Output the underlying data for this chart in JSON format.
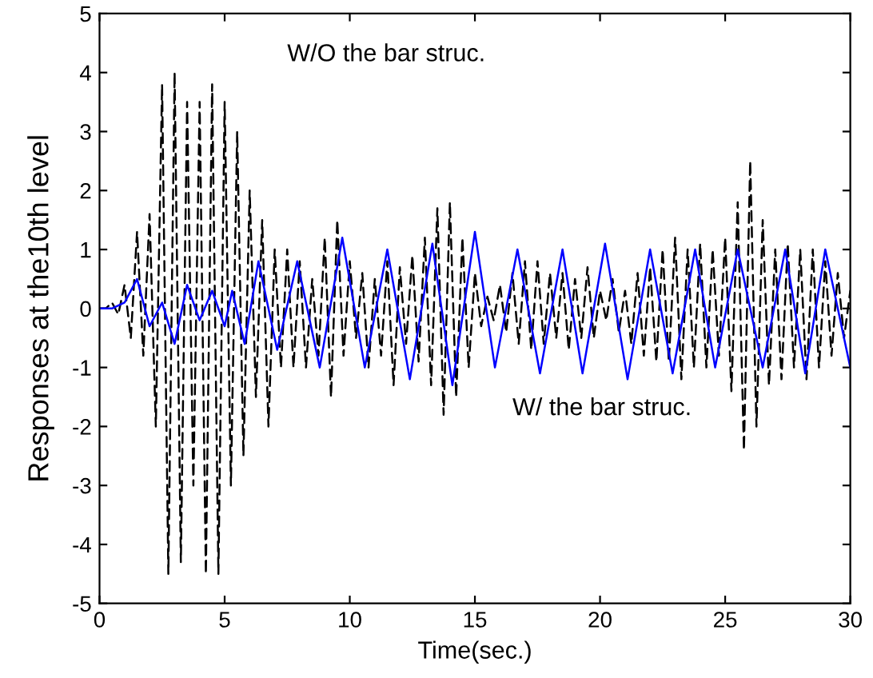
{
  "chart_data": {
    "type": "line",
    "xlabel": "Time(sec.)",
    "ylabel": "Responses at the10th level",
    "xlim": [
      0,
      30
    ],
    "ylim": [
      -5,
      5
    ],
    "xticks": [
      0,
      5,
      10,
      15,
      20,
      25,
      30
    ],
    "yticks": [
      -5,
      -4,
      -3,
      -2,
      -1,
      0,
      1,
      2,
      3,
      4,
      5
    ],
    "grid": false,
    "legend": false,
    "series": [
      {
        "color": "#000000",
        "line_style": "dashed",
        "x": [
          0,
          0.25,
          0.5,
          0.75,
          1.0,
          1.25,
          1.5,
          1.75,
          2.0,
          2.25,
          2.5,
          2.75,
          3.0,
          3.25,
          3.5,
          3.75,
          4.0,
          4.25,
          4.5,
          4.75,
          5.0,
          5.25,
          5.5,
          5.75,
          6.0,
          6.25,
          6.5,
          6.75,
          7.0,
          7.25,
          7.5,
          7.75,
          8.0,
          8.25,
          8.5,
          8.75,
          9.0,
          9.25,
          9.5,
          9.75,
          10.0,
          10.25,
          10.5,
          10.75,
          11.0,
          11.25,
          11.5,
          11.75,
          12.0,
          12.25,
          12.5,
          12.75,
          13.0,
          13.25,
          13.5,
          13.75,
          14.0,
          14.25,
          14.5,
          14.75,
          15.0,
          15.25,
          15.5,
          15.75,
          16.0,
          16.25,
          16.5,
          16.75,
          17.0,
          17.25,
          17.5,
          17.75,
          18.0,
          18.25,
          18.5,
          18.75,
          19.0,
          19.25,
          19.5,
          19.75,
          20.0,
          20.25,
          20.5,
          20.75,
          21.0,
          21.25,
          21.5,
          21.75,
          22.0,
          22.25,
          22.5,
          22.75,
          23.0,
          23.25,
          23.5,
          23.75,
          24.0,
          24.25,
          24.5,
          24.75,
          25.0,
          25.25,
          25.5,
          25.75,
          26.0,
          26.25,
          26.5,
          26.75,
          27.0,
          27.25,
          27.5,
          27.75,
          28.0,
          28.25,
          28.5,
          28.75,
          29.0,
          29.25,
          29.5,
          29.75,
          30
        ],
        "values": [
          0,
          0,
          0.1,
          -0.1,
          0.4,
          -0.5,
          1.3,
          -0.8,
          1.6,
          -2.0,
          3.8,
          -4.5,
          4.0,
          -4.3,
          3.5,
          -3.0,
          3.5,
          -4.5,
          3.8,
          -4.5,
          3.5,
          -3.0,
          3.0,
          -2.5,
          2.0,
          -1.5,
          1.5,
          -2.0,
          1.0,
          -1.0,
          1.0,
          -1.0,
          0.8,
          -1.0,
          0.5,
          -0.8,
          1.2,
          -1.5,
          1.5,
          -0.8,
          0.8,
          -0.5,
          0.6,
          -1.0,
          0.5,
          -0.8,
          0.8,
          -1.3,
          0.7,
          -0.6,
          0.9,
          -0.9,
          1.2,
          -1.3,
          1.7,
          -1.8,
          1.8,
          -1.5,
          1.2,
          -1.0,
          0.6,
          -0.3,
          0.2,
          -0.2,
          0.4,
          -0.4,
          0.6,
          -0.6,
          0.8,
          -0.7,
          0.8,
          -0.6,
          0.6,
          -0.5,
          0.6,
          -0.7,
          0.5,
          -0.5,
          0.7,
          -0.5,
          0.3,
          -0.2,
          0.5,
          -0.4,
          0.3,
          -0.6,
          0.6,
          -0.8,
          0.7,
          -0.9,
          1.0,
          -0.9,
          1.2,
          -1.2,
          1.0,
          -1.0,
          1.1,
          -1.0,
          1.0,
          -0.8,
          1.2,
          -1.4,
          1.8,
          -2.4,
          2.5,
          -2.0,
          1.5,
          -1.3,
          1.0,
          -1.2,
          1.1,
          -1.0,
          1.0,
          -1.2,
          1.0,
          -1.0,
          0.8,
          -0.8,
          0.6,
          -0.5,
          0.3
        ]
      },
      {
        "color": "#0000ff",
        "line_style": "solid",
        "x": [
          0,
          0.5,
          1,
          1.5,
          2,
          2.5,
          3,
          3.5,
          4,
          4.5,
          5,
          5.3,
          5.8,
          6.35,
          7.1,
          7.9,
          8.8,
          9.7,
          10.6,
          11.5,
          12.4,
          13.3,
          14.1,
          15.0,
          15.8,
          16.7,
          17.6,
          18.5,
          19.3,
          20.2,
          21.1,
          22.0,
          22.9,
          23.8,
          24.6,
          25.5,
          26.5,
          27.4,
          28.2,
          29.0,
          30
        ],
        "values": [
          0,
          0,
          0.1,
          0.5,
          -0.3,
          0.1,
          -0.6,
          0.4,
          -0.2,
          0.3,
          -0.3,
          0.3,
          -0.6,
          0.8,
          -0.7,
          0.8,
          -1.0,
          1.2,
          -1.0,
          1.0,
          -1.2,
          1.1,
          -1.3,
          1.3,
          -1.0,
          1.0,
          -1.1,
          1.0,
          -1.1,
          1.1,
          -1.2,
          1.0,
          -1.1,
          1.0,
          -1.0,
          1.0,
          -1.0,
          1.0,
          -1.1,
          1.0,
          -1.0
        ]
      }
    ],
    "annotations": [
      "W/O the bar struc.",
      "W/ the bar struc."
    ]
  }
}
